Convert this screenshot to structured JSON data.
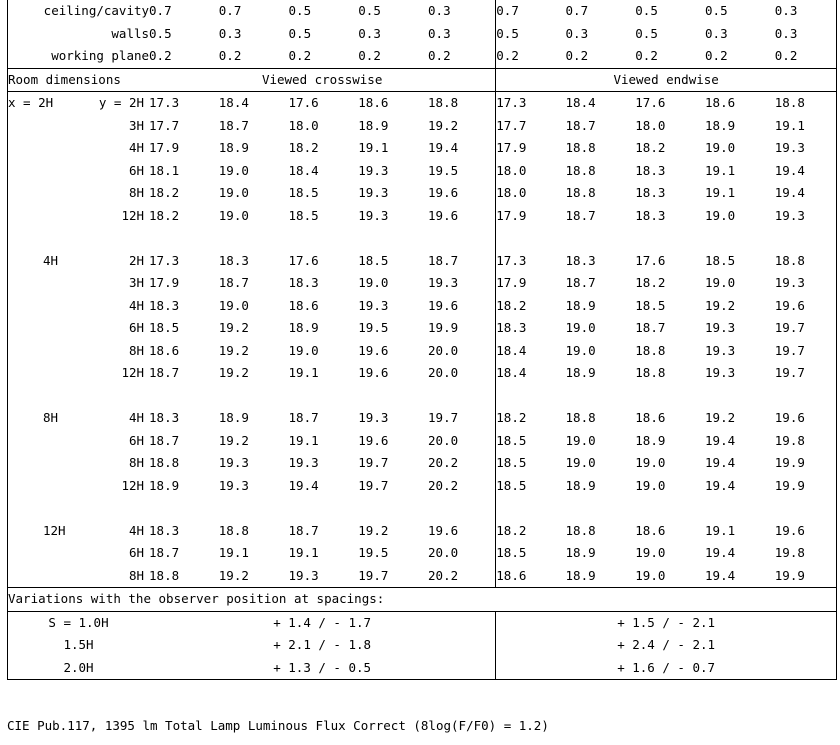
{
  "header_rows": [
    {
      "label": "ceiling/cavity",
      "crosswise": [
        "0.7",
        "0.7",
        "0.5",
        "0.5",
        "0.3"
      ],
      "endwise": [
        "0.7",
        "0.7",
        "0.5",
        "0.5",
        "0.3"
      ]
    },
    {
      "label": "walls",
      "crosswise": [
        "0.5",
        "0.3",
        "0.5",
        "0.3",
        "0.3"
      ],
      "endwise": [
        "0.5",
        "0.3",
        "0.5",
        "0.3",
        "0.3"
      ]
    },
    {
      "label": "working plane",
      "crosswise": [
        "0.2",
        "0.2",
        "0.2",
        "0.2",
        "0.2"
      ],
      "endwise": [
        "0.2",
        "0.2",
        "0.2",
        "0.2",
        "0.2"
      ]
    }
  ],
  "section_header": {
    "room_dimensions": "Room dimensions",
    "viewed_crosswise": "Viewed crosswise",
    "viewed_endwise": "Viewed endwise"
  },
  "groups": [
    {
      "x_label": "x =  2H",
      "rows": [
        {
          "y": "y =   2H",
          "crosswise": [
            "17.3",
            "18.4",
            "17.6",
            "18.6",
            "18.8"
          ],
          "endwise": [
            "17.3",
            "18.4",
            "17.6",
            "18.6",
            "18.8"
          ]
        },
        {
          "y": "3H",
          "crosswise": [
            "17.7",
            "18.7",
            "18.0",
            "18.9",
            "19.2"
          ],
          "endwise": [
            "17.7",
            "18.7",
            "18.0",
            "18.9",
            "19.1"
          ]
        },
        {
          "y": "4H",
          "crosswise": [
            "17.9",
            "18.9",
            "18.2",
            "19.1",
            "19.4"
          ],
          "endwise": [
            "17.9",
            "18.8",
            "18.2",
            "19.0",
            "19.3"
          ]
        },
        {
          "y": "6H",
          "crosswise": [
            "18.1",
            "19.0",
            "18.4",
            "19.3",
            "19.5"
          ],
          "endwise": [
            "18.0",
            "18.8",
            "18.3",
            "19.1",
            "19.4"
          ]
        },
        {
          "y": "8H",
          "crosswise": [
            "18.2",
            "19.0",
            "18.5",
            "19.3",
            "19.6"
          ],
          "endwise": [
            "18.0",
            "18.8",
            "18.3",
            "19.1",
            "19.4"
          ]
        },
        {
          "y": "12H",
          "crosswise": [
            "18.2",
            "19.0",
            "18.5",
            "19.3",
            "19.6"
          ],
          "endwise": [
            "17.9",
            "18.7",
            "18.3",
            "19.0",
            "19.3"
          ]
        }
      ]
    },
    {
      "x_label": "4H",
      "rows": [
        {
          "y": "2H",
          "crosswise": [
            "17.3",
            "18.3",
            "17.6",
            "18.5",
            "18.7"
          ],
          "endwise": [
            "17.3",
            "18.3",
            "17.6",
            "18.5",
            "18.8"
          ]
        },
        {
          "y": "3H",
          "crosswise": [
            "17.9",
            "18.7",
            "18.3",
            "19.0",
            "19.3"
          ],
          "endwise": [
            "17.9",
            "18.7",
            "18.2",
            "19.0",
            "19.3"
          ]
        },
        {
          "y": "4H",
          "crosswise": [
            "18.3",
            "19.0",
            "18.6",
            "19.3",
            "19.6"
          ],
          "endwise": [
            "18.2",
            "18.9",
            "18.5",
            "19.2",
            "19.6"
          ]
        },
        {
          "y": "6H",
          "crosswise": [
            "18.5",
            "19.2",
            "18.9",
            "19.5",
            "19.9"
          ],
          "endwise": [
            "18.3",
            "19.0",
            "18.7",
            "19.3",
            "19.7"
          ]
        },
        {
          "y": "8H",
          "crosswise": [
            "18.6",
            "19.2",
            "19.0",
            "19.6",
            "20.0"
          ],
          "endwise": [
            "18.4",
            "19.0",
            "18.8",
            "19.3",
            "19.7"
          ]
        },
        {
          "y": "12H",
          "crosswise": [
            "18.7",
            "19.2",
            "19.1",
            "19.6",
            "20.0"
          ],
          "endwise": [
            "18.4",
            "18.9",
            "18.8",
            "19.3",
            "19.7"
          ]
        }
      ]
    },
    {
      "x_label": "8H",
      "rows": [
        {
          "y": "4H",
          "crosswise": [
            "18.3",
            "18.9",
            "18.7",
            "19.3",
            "19.7"
          ],
          "endwise": [
            "18.2",
            "18.8",
            "18.6",
            "19.2",
            "19.6"
          ]
        },
        {
          "y": "6H",
          "crosswise": [
            "18.7",
            "19.2",
            "19.1",
            "19.6",
            "20.0"
          ],
          "endwise": [
            "18.5",
            "19.0",
            "18.9",
            "19.4",
            "19.8"
          ]
        },
        {
          "y": "8H",
          "crosswise": [
            "18.8",
            "19.3",
            "19.3",
            "19.7",
            "20.2"
          ],
          "endwise": [
            "18.5",
            "19.0",
            "19.0",
            "19.4",
            "19.9"
          ]
        },
        {
          "y": "12H",
          "crosswise": [
            "18.9",
            "19.3",
            "19.4",
            "19.7",
            "20.2"
          ],
          "endwise": [
            "18.5",
            "18.9",
            "19.0",
            "19.4",
            "19.9"
          ]
        }
      ]
    },
    {
      "x_label": "12H",
      "rows": [
        {
          "y": "4H",
          "crosswise": [
            "18.3",
            "18.8",
            "18.7",
            "19.2",
            "19.6"
          ],
          "endwise": [
            "18.2",
            "18.8",
            "18.6",
            "19.1",
            "19.6"
          ]
        },
        {
          "y": "6H",
          "crosswise": [
            "18.7",
            "19.1",
            "19.1",
            "19.5",
            "20.0"
          ],
          "endwise": [
            "18.5",
            "18.9",
            "19.0",
            "19.4",
            "19.8"
          ]
        },
        {
          "y": "8H",
          "crosswise": [
            "18.8",
            "19.2",
            "19.3",
            "19.7",
            "20.2"
          ],
          "endwise": [
            "18.6",
            "18.9",
            "19.0",
            "19.4",
            "19.9"
          ]
        }
      ]
    }
  ],
  "variations": {
    "title": "Variations with the observer position at spacings:",
    "rows": [
      {
        "spacing": "S = 1.0H",
        "crosswise": "+ 1.4 / - 1.7",
        "endwise": "+ 1.5 / - 2.1"
      },
      {
        "spacing": "1.5H",
        "crosswise": "+ 2.1 / - 1.8",
        "endwise": "+ 2.4 / - 2.1"
      },
      {
        "spacing": "2.0H",
        "crosswise": "+ 1.3 / - 0.5",
        "endwise": "+ 1.6 / - 0.7"
      }
    ]
  },
  "footer": "CIE Pub.117,  1395 lm Total Lamp Luminous Flux Correct (8log(F/F0) = 1.2)"
}
